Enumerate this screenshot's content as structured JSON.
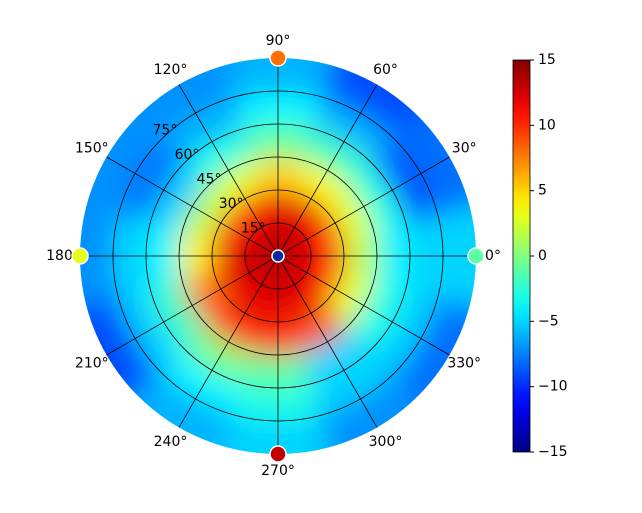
{
  "chart_data": {
    "type": "polar_heatmap",
    "theta": [
      0,
      30,
      60,
      90,
      120,
      150,
      180,
      210,
      240,
      270,
      300,
      330
    ],
    "r": [
      7.5,
      22.5,
      37.5,
      52.5,
      67.5,
      82.5
    ],
    "values": [
      [
        13,
        13,
        13,
        13,
        13,
        13,
        13,
        13,
        13,
        13,
        13,
        13
      ],
      [
        11,
        11,
        12,
        12,
        11,
        11,
        12,
        12,
        12,
        12,
        12,
        11
      ],
      [
        2,
        3,
        4,
        5,
        3,
        2,
        4,
        8,
        10,
        10,
        9,
        3
      ],
      [
        -4,
        -3,
        -2,
        -1,
        -3,
        -5,
        -4,
        -2,
        0,
        -1,
        -5,
        -3
      ],
      [
        -5,
        -9,
        -6,
        -4,
        -6,
        -8,
        -5,
        -5,
        -4,
        -3,
        -5,
        -5
      ],
      [
        -5,
        -8,
        -9,
        -6,
        -7,
        -7,
        -7,
        -9,
        -6,
        -5,
        -7,
        -8
      ]
    ],
    "markers": {
      "theta": [
        0,
        90,
        180,
        270
      ],
      "values": [
        -1,
        8,
        3,
        13
      ]
    },
    "rlim": [
      0,
      90
    ],
    "rticks": [
      {
        "value": 15,
        "label": "15°"
      },
      {
        "value": 30,
        "label": "30°"
      },
      {
        "value": 45,
        "label": "45°"
      },
      {
        "value": 60,
        "label": "60°"
      },
      {
        "value": 75,
        "label": "75°"
      }
    ],
    "thetaticks": [
      {
        "value": 0,
        "label": "0°"
      },
      {
        "value": 30,
        "label": "30°"
      },
      {
        "value": 60,
        "label": "60°"
      },
      {
        "value": 90,
        "label": "90°"
      },
      {
        "value": 120,
        "label": "120°"
      },
      {
        "value": 150,
        "label": "150°"
      },
      {
        "value": 180,
        "label": "180°"
      },
      {
        "value": 210,
        "label": "210°"
      },
      {
        "value": 240,
        "label": "240°"
      },
      {
        "value": 270,
        "label": "270°"
      },
      {
        "value": 300,
        "label": "300°"
      },
      {
        "value": 330,
        "label": "330°"
      }
    ],
    "colormap": "jet",
    "clim": [
      -15,
      15
    ],
    "cticks": [
      {
        "value": -15,
        "label": "−15"
      },
      {
        "value": -10,
        "label": "−10"
      },
      {
        "value": -5,
        "label": "−5"
      },
      0,
      5,
      10,
      15
    ]
  }
}
